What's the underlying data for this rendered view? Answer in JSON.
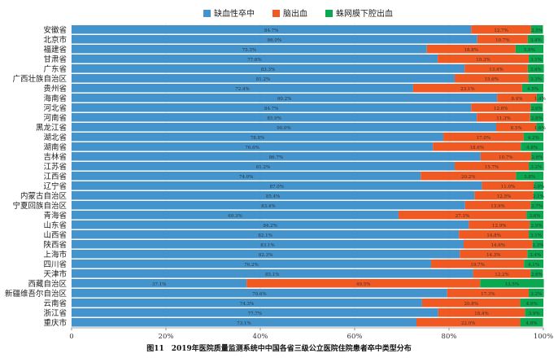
{
  "chart_data": {
    "type": "bar",
    "stacked": true,
    "orientation": "horizontal",
    "title": "图11　2019年医院质量监测系统中中国各省三级公立医院住院患者卒中类型分布",
    "xlim": [
      0,
      100
    ],
    "xticks": [
      "0",
      "20%",
      "40%",
      "60%",
      "80%",
      "100%"
    ],
    "legend_position": "top",
    "categories": [
      "安徽省",
      "北京市",
      "福建省",
      "甘肃省",
      "广东省",
      "广西壮族自治区",
      "贵州省",
      "海南省",
      "河北省",
      "河南省",
      "黑龙江省",
      "湖北省",
      "湖南省",
      "吉林省",
      "江苏省",
      "江西省",
      "辽宁省",
      "内蒙古自治区",
      "宁夏回族自治区",
      "青海省",
      "山东省",
      "山西省",
      "陕西省",
      "上海市",
      "四川省",
      "天津市",
      "西藏自治区",
      "新疆维吾尔自治区",
      "云南省",
      "浙江省",
      "重庆市"
    ],
    "series": [
      {
        "name": "缺血性卒中",
        "color": "#4393cc",
        "values": [
          84.7,
          86.0,
          75.3,
          77.6,
          83.3,
          81.2,
          72.4,
          90.2,
          84.7,
          85.9,
          90.0,
          78.8,
          76.6,
          86.7,
          81.2,
          74.0,
          87.0,
          85.4,
          83.4,
          69.3,
          84.2,
          82.1,
          83.1,
          82.3,
          76.2,
          85.1,
          37.1,
          79.6,
          74.3,
          77.7,
          73.1
        ]
      },
      {
        "name": "脑出血",
        "color": "#f05a22",
        "values": [
          12.7,
          10.7,
          18.8,
          19.3,
          13.4,
          15.6,
          23.1,
          8.4,
          12.6,
          11.3,
          8.5,
          17.0,
          18.6,
          10.7,
          15.7,
          20.2,
          11.0,
          12.5,
          13.9,
          27.1,
          12.9,
          14.8,
          14.6,
          14.3,
          19.7,
          12.2,
          49.5,
          17.3,
          20.8,
          18.4,
          22.0
        ]
      },
      {
        "name": "蛛网膜下腔出血",
        "color": "#0aa84f",
        "values": [
          2.5,
          3.4,
          5.9,
          3.1,
          3.4,
          3.3,
          4.5,
          1.4,
          2.6,
          2.8,
          1.6,
          4.2,
          4.8,
          2.6,
          3.2,
          5.8,
          2.0,
          2.1,
          2.7,
          3.6,
          2.9,
          3.1,
          2.3,
          3.4,
          4.1,
          2.6,
          13.5,
          3.2,
          4.9,
          3.9,
          4.8
        ]
      }
    ]
  }
}
